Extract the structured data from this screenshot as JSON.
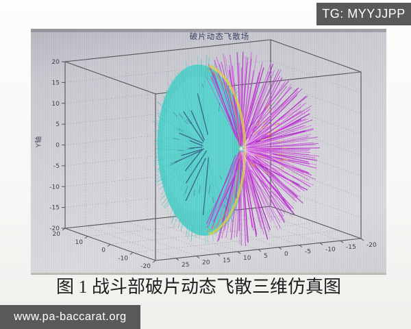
{
  "watermark_top": {
    "label": "TG: MYYJJPP"
  },
  "watermark_bottom": {
    "label": "www.pa-baccarat.org"
  },
  "figure_caption": "图 1 战斗部破片动态飞散三维仿真图",
  "chart_data": {
    "type": "scatter",
    "subtype": "3d-vector-burst",
    "title": "破片动态飞散场",
    "grid": "dotted",
    "legend": false,
    "axes": {
      "z": {
        "label": "Y轴",
        "range": [
          -20,
          20
        ],
        "ticks": [
          20,
          15,
          10,
          5,
          0,
          -5,
          -10,
          -15,
          -20
        ]
      },
      "x": {
        "label": "",
        "range": [
          -20,
          20
        ],
        "ticks": [
          20,
          10,
          0,
          -10,
          -20
        ]
      },
      "y": {
        "label": "",
        "range": [
          -20,
          30
        ],
        "ticks": [
          25,
          20,
          15,
          10,
          5,
          0,
          -5,
          -10,
          -15,
          -20
        ]
      }
    },
    "series": [
      {
        "name": "fragment-disc-front",
        "color": "#57cfc9",
        "color_alt": "#45c4be",
        "desc": "dense cyan disc of fragment velocity vectors, radius about 20 units, centered near origin"
      },
      {
        "name": "fragment-fan-rear",
        "color": "#c52fd8",
        "color_alt": "#a823c4",
        "color_light": "#d95fe2",
        "desc": "magenta rays converging to focal point on right side of disc"
      },
      {
        "name": "rim-band",
        "color": "#ddd04b",
        "color_alt": "#e08a30",
        "desc": "yellow-orange interface band between cyan disc and magenta fan"
      },
      {
        "name": "dark-streaks",
        "color": "#243874",
        "desc": "dark navy radial streaks inside cyan disc"
      },
      {
        "name": "focal-glint",
        "color": "#f3e2f5",
        "desc": "bright convergence point of rays"
      }
    ],
    "style": {
      "axis_line_color": "#4f4f55",
      "grid_color": "#9a9aa4",
      "tick_label_color": "#3a3a42",
      "title_color": "#343a5e"
    }
  }
}
